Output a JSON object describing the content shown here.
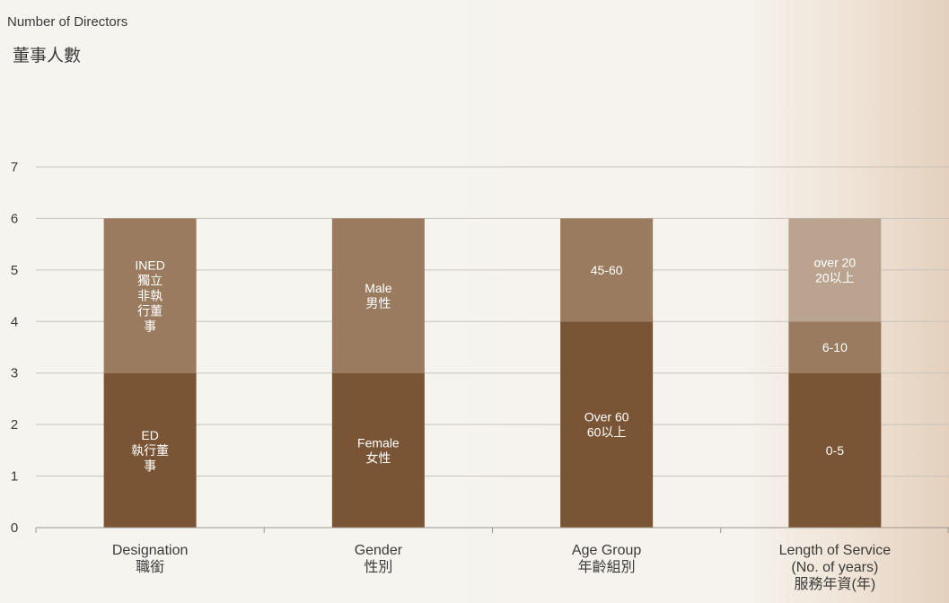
{
  "header": {
    "title_en": "Number of Directors",
    "title_zh": "董事人數"
  },
  "colors": {
    "dark": "#7a5535",
    "mid": "#9a7b60",
    "light": "#bba48f",
    "grid": "#c9c3bb",
    "axis": "#9e968c",
    "text": "#3c3a36"
  },
  "chart_data": {
    "type": "bar",
    "stacked": true,
    "ylim": [
      0,
      7
    ],
    "yticks": [
      0,
      1,
      2,
      3,
      4,
      5,
      6,
      7
    ],
    "grid": true,
    "categories": [
      {
        "label_lines": [
          "Designation",
          "職銜"
        ],
        "segments": [
          {
            "label_lines": [
              "ED",
              "執行董",
              "事"
            ],
            "value": 3,
            "tone": "dark"
          },
          {
            "label_lines": [
              "INED",
              "獨立",
              "非執",
              "行董",
              "事"
            ],
            "value": 3,
            "tone": "mid"
          }
        ]
      },
      {
        "label_lines": [
          "Gender",
          "性別"
        ],
        "segments": [
          {
            "label_lines": [
              "Female",
              "女性"
            ],
            "value": 3,
            "tone": "dark"
          },
          {
            "label_lines": [
              "Male",
              "男性"
            ],
            "value": 3,
            "tone": "mid"
          }
        ]
      },
      {
        "label_lines": [
          "Age Group",
          "年齡組別"
        ],
        "segments": [
          {
            "label_lines": [
              "Over 60",
              "60以上"
            ],
            "value": 4,
            "tone": "dark"
          },
          {
            "label_lines": [
              "45-60"
            ],
            "value": 2,
            "tone": "mid"
          }
        ]
      },
      {
        "label_lines": [
          "Length of Service",
          "(No. of years)",
          "服務年資(年)"
        ],
        "segments": [
          {
            "label_lines": [
              "0-5"
            ],
            "value": 3,
            "tone": "dark"
          },
          {
            "label_lines": [
              "6-10"
            ],
            "value": 1,
            "tone": "mid"
          },
          {
            "label_lines": [
              "over 20",
              "20以上"
            ],
            "value": 2,
            "tone": "light"
          }
        ]
      }
    ]
  }
}
